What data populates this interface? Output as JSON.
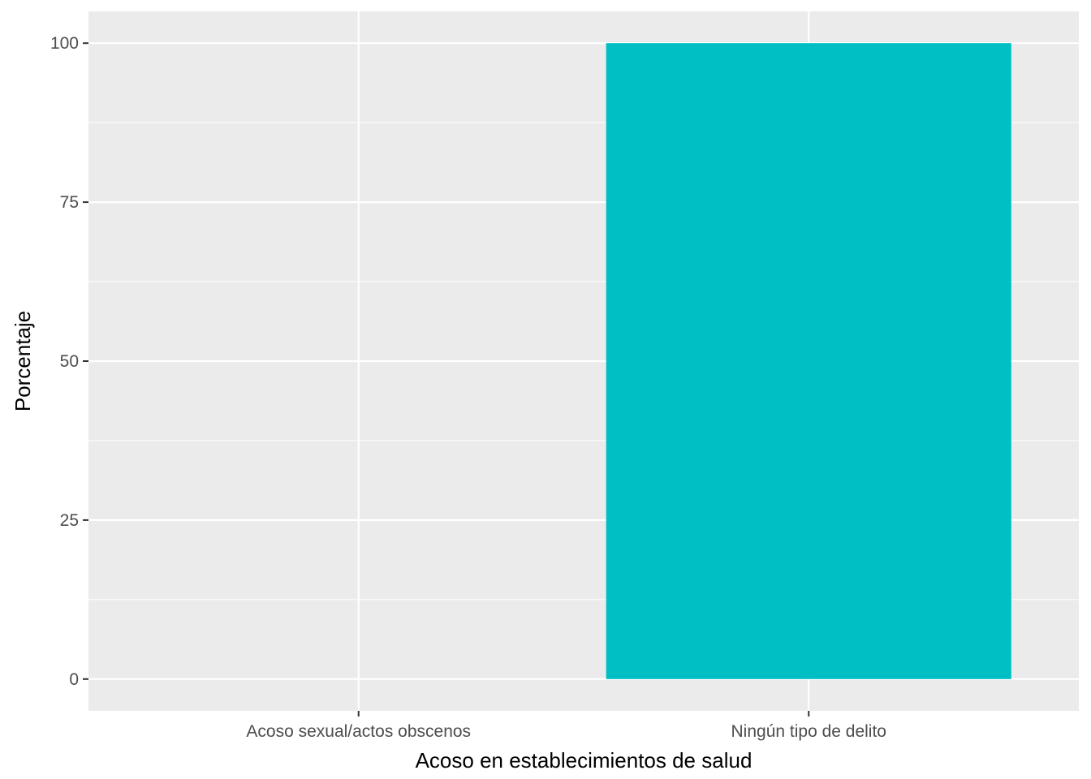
{
  "chart_data": {
    "type": "bar",
    "categories": [
      "Acoso sexual/actos obscenos",
      "Ningún tipo de delito"
    ],
    "values": [
      0,
      100
    ],
    "xlabel": "Acoso en establecimientos de salud",
    "ylabel": "Porcentaje",
    "ylim": [
      -5,
      105
    ],
    "yticks": [
      0,
      25,
      50,
      75,
      100
    ],
    "grid": true,
    "legend": "none",
    "colors": {
      "bar": "#00BFC4",
      "panel": "#EBEBEB",
      "grid": "#FFFFFF",
      "tick": "#333333"
    }
  }
}
